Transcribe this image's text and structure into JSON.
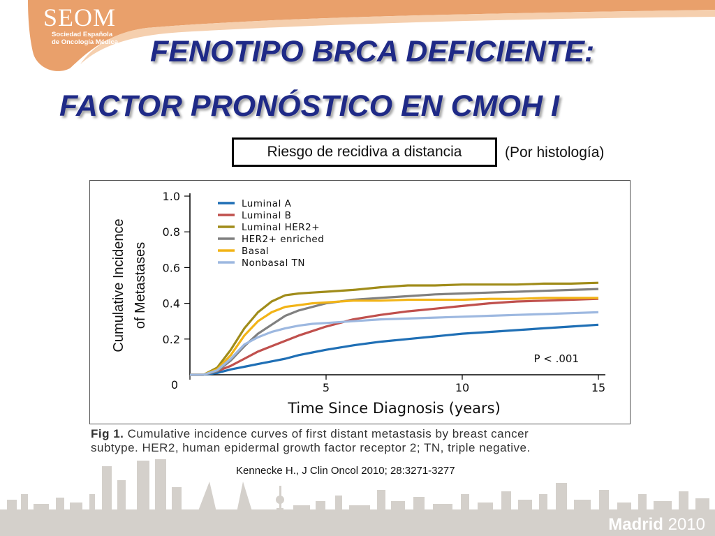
{
  "logo": {
    "name": "SEOM",
    "sub_line1": "Sociedad Española",
    "sub_line2": "de Oncología Médica"
  },
  "slide": {
    "title_line1": "FENOTIPO BRCA DEFICIENTE:",
    "title_line2": "FACTOR PRONÓSTICO EN CMOH I",
    "boxed_label": "Riesgo de recidiva a distancia",
    "side_note": "(Por histología)",
    "caption_fig": "Fig 1.",
    "caption_line1_rest": " Cumulative incidence curves of first distant metastasis by breast cancer",
    "caption_line2": "subtype. HER2, human epidermal growth factor receptor 2; TN, triple negative.",
    "citation": "Kennecke H., J Clin Oncol  2010; 28:3271-3277"
  },
  "footer": {
    "city": "Madrid",
    "year": "2010"
  },
  "colors": {
    "title": "#1f2a87",
    "logo_orange": "#e9a06b",
    "skyline": "#d4d0cb"
  },
  "chart_data": {
    "type": "line",
    "title": "",
    "xlabel": "Time Since Diagnosis (years)",
    "ylabel_line1": "Cumulative Incidence",
    "ylabel_line2": "of Metastases",
    "xlim": [
      0,
      15
    ],
    "ylim": [
      0,
      1.0
    ],
    "x_ticks": [
      0,
      5,
      10,
      15
    ],
    "y_ticks": [
      0.2,
      0.4,
      0.6,
      0.8,
      1.0
    ],
    "x_tick_labels": [
      "0",
      "5",
      "10",
      "15"
    ],
    "y_tick_labels": [
      "0.2",
      "0.4",
      "0.6",
      "0.8",
      "1.0"
    ],
    "origin_label": "0",
    "annotation": "P < .001",
    "grid": false,
    "legend_position": "top-left",
    "x": [
      0,
      0.5,
      1,
      1.5,
      2,
      2.5,
      3,
      3.5,
      4,
      4.5,
      5,
      6,
      7,
      8,
      9,
      10,
      11,
      12,
      13,
      14,
      15
    ],
    "series": [
      {
        "name": "Luminal A",
        "color": "#1f6fb5",
        "values": [
          0,
          0,
          0.01,
          0.03,
          0.045,
          0.06,
          0.075,
          0.09,
          0.11,
          0.125,
          0.14,
          0.165,
          0.185,
          0.2,
          0.215,
          0.23,
          0.24,
          0.25,
          0.26,
          0.27,
          0.28
        ]
      },
      {
        "name": "Luminal B",
        "color": "#c0504d",
        "values": [
          0,
          0,
          0.02,
          0.05,
          0.09,
          0.13,
          0.16,
          0.19,
          0.22,
          0.245,
          0.27,
          0.31,
          0.335,
          0.355,
          0.37,
          0.385,
          0.4,
          0.41,
          0.415,
          0.42,
          0.425
        ]
      },
      {
        "name": "Luminal HER2+",
        "color": "#a08c1a",
        "values": [
          0,
          0,
          0.04,
          0.14,
          0.26,
          0.35,
          0.41,
          0.445,
          0.455,
          0.46,
          0.465,
          0.475,
          0.49,
          0.5,
          0.5,
          0.505,
          0.505,
          0.505,
          0.51,
          0.51,
          0.515
        ]
      },
      {
        "name": "HER2+ enriched",
        "color": "#808080",
        "values": [
          0,
          0,
          0.02,
          0.08,
          0.16,
          0.23,
          0.28,
          0.33,
          0.36,
          0.38,
          0.4,
          0.42,
          0.43,
          0.44,
          0.45,
          0.455,
          0.46,
          0.465,
          0.47,
          0.475,
          0.48
        ]
      },
      {
        "name": "Basal",
        "color": "#f2b417",
        "values": [
          0,
          0,
          0.03,
          0.11,
          0.22,
          0.3,
          0.35,
          0.38,
          0.39,
          0.4,
          0.405,
          0.415,
          0.415,
          0.42,
          0.42,
          0.42,
          0.425,
          0.425,
          0.43,
          0.43,
          0.43
        ]
      },
      {
        "name": "Nonbasal TN",
        "color": "#9db8e0",
        "values": [
          0,
          0,
          0.025,
          0.09,
          0.17,
          0.21,
          0.24,
          0.26,
          0.275,
          0.285,
          0.29,
          0.3,
          0.31,
          0.315,
          0.32,
          0.325,
          0.33,
          0.335,
          0.34,
          0.345,
          0.35
        ]
      }
    ]
  }
}
